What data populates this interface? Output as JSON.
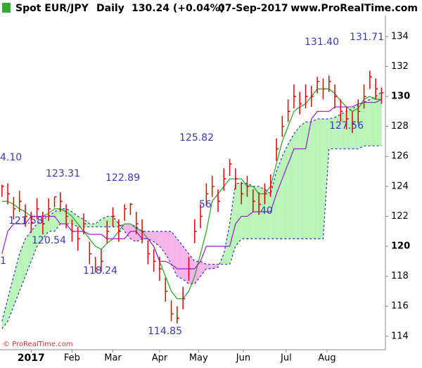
{
  "header": {
    "symbol": "Spot EUR/JPY",
    "period": "Daily",
    "price": "130.24 (+0.04%)",
    "date": "07-Sep-2017",
    "site": "www.ProRealTime.com"
  },
  "footer": "© ProRealTime.com",
  "annotations": [
    "4.10",
    "123.31",
    "121.58",
    "120.54",
    "118.24",
    "122.89",
    "114.85",
    "125.82",
    "56",
    "40",
    "131.40",
    "131.71",
    "127.56",
    "1"
  ],
  "chart_data": {
    "type": "ohlc",
    "x": [
      0,
      3,
      6,
      9,
      12,
      15,
      18,
      21,
      24,
      27,
      30,
      33,
      36,
      39,
      42,
      45,
      48,
      51,
      54,
      57,
      60,
      63,
      66,
      69,
      72,
      75,
      78,
      81,
      84,
      87,
      90,
      93,
      96,
      99,
      102,
      105,
      108,
      111,
      114,
      117,
      120,
      123,
      126,
      129,
      132,
      135,
      138,
      141,
      144,
      147,
      150,
      153,
      156,
      159,
      162,
      165,
      168,
      171,
      174,
      177,
      180,
      183,
      186,
      189,
      192,
      195
    ],
    "xlim": [
      -1,
      197
    ],
    "xticks": [
      {
        "value": 15,
        "label": "2017"
      },
      {
        "value": 36,
        "label": "Feb"
      },
      {
        "value": 57,
        "label": "Mar"
      },
      {
        "value": 81,
        "label": "Apr"
      },
      {
        "value": 101,
        "label": "May"
      },
      {
        "value": 124,
        "label": "Jun"
      },
      {
        "value": 146,
        "label": "Jul"
      },
      {
        "value": 167,
        "label": "Aug"
      }
    ],
    "ylim": [
      113.1,
      135.4
    ],
    "yticks": [
      114,
      116,
      118,
      120,
      122,
      124,
      126,
      128,
      130,
      132,
      134
    ],
    "price": {
      "color": "#e00000",
      "high": [
        124.1,
        124.2,
        123.3,
        123.7,
        122.8,
        122.3,
        123.2,
        122.3,
        123.2,
        123.31,
        123.6,
        122.8,
        121.8,
        121.3,
        122.2,
        120.3,
        119.3,
        119.8,
        121.7,
        122.6,
        121.8,
        122.8,
        122.89,
        122.3,
        121.8,
        120.4,
        119.8,
        119.3,
        117.9,
        116.4,
        116.0,
        117.3,
        119.3,
        121.8,
        122.8,
        124.2,
        124.7,
        123.8,
        125.2,
        125.82,
        125.2,
        124.3,
        124.7,
        123.8,
        123.6,
        124.2,
        124.8,
        127.2,
        128.7,
        129.8,
        130.8,
        130.3,
        130.8,
        130.7,
        131.3,
        131.2,
        131.4,
        130.8,
        129.8,
        129.3,
        129.0,
        129.8,
        130.8,
        131.71,
        131.2,
        130.6
      ],
      "low": [
        123.3,
        122.8,
        121.8,
        122.3,
        121.3,
        120.9,
        121.8,
        120.8,
        121.7,
        122.6,
        122.3,
        121.2,
        120.3,
        119.7,
        120.8,
        118.8,
        118.24,
        118.3,
        120.2,
        121.3,
        120.3,
        121.7,
        122.1,
        120.8,
        120.2,
        118.8,
        118.3,
        117.7,
        116.3,
        115.0,
        114.85,
        115.8,
        117.7,
        120.2,
        121.2,
        122.7,
        123.3,
        122.3,
        123.7,
        124.7,
        123.8,
        122.8,
        123.3,
        122.3,
        122.1,
        122.8,
        123.3,
        125.7,
        127.3,
        128.3,
        129.2,
        128.8,
        129.2,
        129.3,
        130.2,
        129.8,
        130.3,
        129.2,
        128.3,
        127.8,
        127.56,
        128.2,
        129.2,
        130.5,
        129.8,
        129.5
      ],
      "close": [
        124,
        123.5,
        122.5,
        123,
        122,
        121.6,
        122.5,
        121.5,
        122.5,
        123.3,
        123,
        122,
        121,
        120.5,
        121.5,
        119.5,
        118.5,
        119,
        121,
        122,
        121,
        122.5,
        122.8,
        121.5,
        121,
        119.5,
        119,
        118.5,
        117,
        115.5,
        115.2,
        116.5,
        118.5,
        121,
        122,
        123.5,
        124,
        123,
        124.5,
        125.5,
        124.5,
        123.5,
        124,
        123,
        122.8,
        123.5,
        124,
        126.5,
        128,
        129,
        130,
        129.5,
        130,
        130,
        131,
        130.5,
        131,
        130,
        129,
        128.5,
        128.2,
        129,
        130,
        131.3,
        130.5,
        130.24
      ]
    },
    "series": [
      {
        "color": "#1aa81a",
        "values": [
          123,
          123,
          122.8,
          122.5,
          122.3,
          122,
          122,
          122,
          122.2,
          122.5,
          122.5,
          122.3,
          122,
          121.5,
          121,
          120.5,
          120,
          119.8,
          120.2,
          120.5,
          121,
          121.5,
          121.5,
          121.2,
          121,
          120.5,
          120,
          119,
          118,
          117,
          116.5,
          116.5,
          117,
          118,
          119.5,
          121,
          123,
          123.5,
          124,
          124.5,
          124.5,
          124.5,
          124,
          124,
          123.5,
          123.5,
          124,
          125.5,
          127,
          128,
          129,
          129.3,
          129.5,
          130,
          130.5,
          130.5,
          130.5,
          130.2,
          129.7,
          129.3,
          129,
          129.2,
          129.8,
          130,
          129.8,
          129.8
        ]
      },
      {
        "color": "#9a1ad0",
        "values": [
          119.5,
          121,
          121.5,
          121.5,
          121.5,
          122,
          122,
          122,
          122,
          122,
          121.5,
          121.5,
          121,
          121,
          121,
          120.8,
          120.8,
          120.8,
          120.5,
          120.5,
          120.5,
          120.5,
          121,
          121,
          120.5,
          120.5,
          120,
          119,
          119,
          118.8,
          118.5,
          118.5,
          118.5,
          118.5,
          119,
          120,
          120,
          120,
          120,
          120,
          121.5,
          122,
          122,
          122.3,
          122.3,
          122.3,
          122.3,
          123.5,
          124.5,
          125.5,
          126.5,
          126.5,
          126.5,
          128.5,
          129,
          129,
          129,
          129.3,
          129.3,
          129.3,
          129.3,
          129.5,
          129.6,
          129.6,
          129.6,
          129.8
        ]
      }
    ],
    "cloud": {
      "line_color": "#3030c8",
      "up_color": "#b9f5b9",
      "down_color": "#f5b5ea",
      "span_a": [
        115,
        116.5,
        118,
        119.5,
        120.5,
        121,
        121.5,
        121.8,
        122,
        122.3,
        122.5,
        122.5,
        122.3,
        122,
        121.8,
        121.5,
        121.5,
        121.8,
        122,
        122,
        121.5,
        121,
        120.5,
        120.3,
        120.5,
        120.5,
        120.3,
        120,
        119.5,
        118.8,
        118,
        117.8,
        117.5,
        117.5,
        118,
        118.5,
        118.5,
        118.6,
        119.5,
        121.5,
        124.2,
        124.2,
        124.2,
        124,
        124,
        123.8,
        123.5,
        125,
        126,
        126.8,
        127.5,
        128,
        128.3,
        128.3,
        128.5,
        128.5,
        128.5,
        128.6,
        128.8,
        129,
        129.2,
        129.4,
        129.6,
        129.8,
        130,
        130.3
      ],
      "span_b": [
        114.5,
        115,
        116,
        117,
        118,
        119,
        120,
        120.5,
        121,
        121,
        121.5,
        121.5,
        121.5,
        121.3,
        121.3,
        121.3,
        121.3,
        121.3,
        121.3,
        121.3,
        121.3,
        121.5,
        121.5,
        121.3,
        121,
        121,
        121,
        121,
        121,
        121,
        120.5,
        120,
        119.5,
        119,
        119,
        118.8,
        118.8,
        118.8,
        118.8,
        118.8,
        120,
        120.5,
        120.5,
        120.5,
        120.5,
        120.5,
        120.5,
        120.5,
        120.5,
        120.5,
        120.5,
        120.5,
        120.5,
        120.5,
        120.5,
        120.5,
        126.5,
        126.5,
        126.5,
        126.5,
        126.5,
        126.5,
        126.7,
        126.7,
        126.7,
        126.7
      ]
    }
  }
}
